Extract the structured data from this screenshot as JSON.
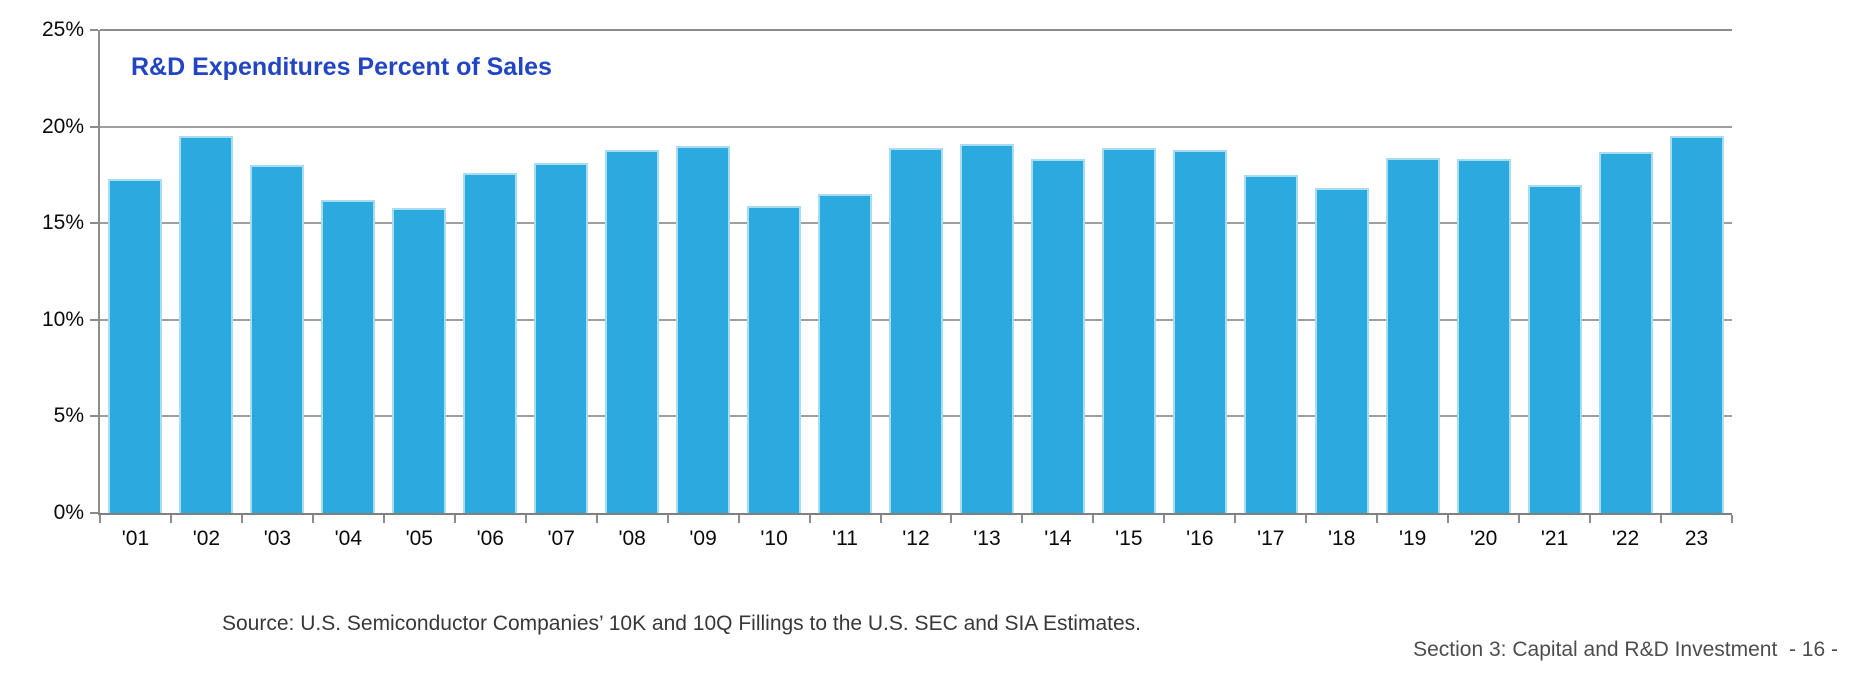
{
  "page": {
    "source_note": "Source: U.S. Semiconductor Companies’ 10K and 10Q Fillings to the U.S. SEC and SIA Estimates.",
    "section_footer": "Section 3: Capital and R&D Investment  - 16 -"
  },
  "colors": {
    "bar": "#2BAAE0",
    "bar_edge": "#A9DCF3",
    "title": "#2245C4",
    "gridline": "#9E9E9E",
    "axis": "#8C8C8C",
    "tick_label": "#0A0A0A",
    "source_text": "#383838",
    "footer_text": "#4D4D4D"
  },
  "chart_data": {
    "type": "bar",
    "title": "R&D Expenditures Percent of Sales",
    "categories": [
      "'01",
      "'02",
      "'03",
      "'04",
      "'05",
      "'06",
      "'07",
      "'08",
      "'09",
      "'10",
      "'11",
      "'12",
      "'13",
      "'14",
      "'15",
      "'16",
      "'17",
      "'18",
      "'19",
      "'20",
      "'21",
      "'22",
      "23"
    ],
    "values": [
      17.3,
      19.5,
      18.0,
      16.2,
      15.8,
      17.6,
      18.1,
      18.8,
      19.0,
      15.9,
      16.5,
      18.9,
      19.1,
      18.3,
      18.9,
      18.8,
      17.5,
      16.8,
      18.4,
      18.3,
      17.0,
      18.7,
      19.5
    ],
    "xlabel": "",
    "ylabel": "",
    "ylim": [
      0,
      25
    ],
    "ytick_interval": 5,
    "ytick_labels": [
      "0%",
      "5%",
      "10%",
      "15%",
      "20%",
      "25%"
    ],
    "grid": "horizontal",
    "legend": "none"
  }
}
